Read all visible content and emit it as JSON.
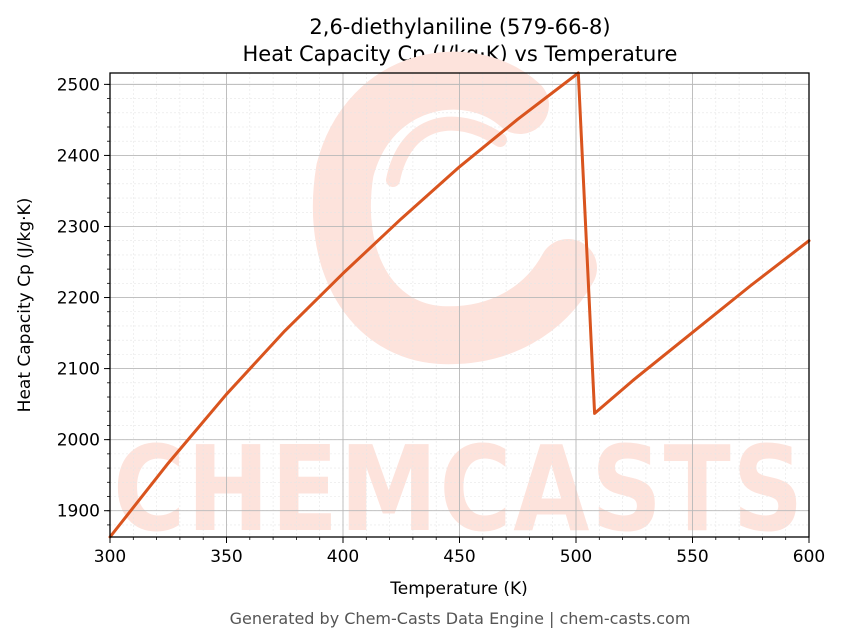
{
  "chart_data": {
    "type": "line",
    "title_line1": "2,6-diethylaniline (579-66-8)",
    "title_line2": "Heat Capacity Cp (J/kg·K) vs Temperature",
    "xlabel": "Temperature (K)",
    "ylabel": "Heat Capacity Cp (J/kg·K)",
    "xlim": [
      300,
      600
    ],
    "ylim": [
      1863,
      2516
    ],
    "x_ticks": [
      300,
      350,
      400,
      450,
      500,
      550,
      600
    ],
    "y_ticks": [
      1900,
      2000,
      2100,
      2200,
      2300,
      2400,
      2500
    ],
    "grid": true,
    "line_color": "#d9541e",
    "series": [
      {
        "x": [
          300,
          325,
          350,
          375,
          400,
          425,
          450,
          475,
          501,
          508,
          525,
          550,
          575,
          600
        ],
        "y": [
          1863,
          1967,
          2064,
          2153,
          2234,
          2311,
          2384,
          2451,
          2516,
          2037,
          2085,
          2151,
          2217,
          2280
        ]
      }
    ]
  },
  "watermark": {
    "text": "CHEMCASTS",
    "color": "#fde3dc"
  },
  "footer": "Generated by Chem-Casts Data Engine | chem-casts.com"
}
